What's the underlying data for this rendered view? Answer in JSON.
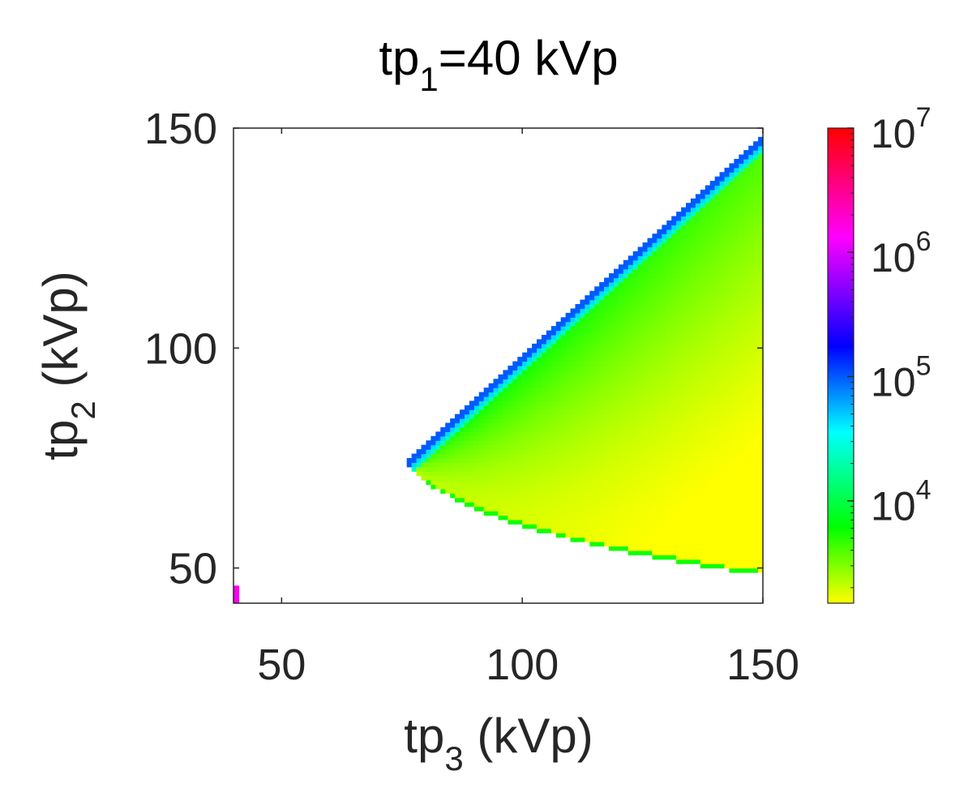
{
  "chart_data": {
    "type": "heatmap",
    "title": {
      "base": "tp",
      "sub": "1",
      "rest": "=40 kVp"
    },
    "xlabel": {
      "base": "tp",
      "sub": "3",
      "rest": " (kVp)"
    },
    "ylabel": {
      "base": "tp",
      "sub": "2",
      "rest": " (kVp)"
    },
    "xlim": [
      40,
      150
    ],
    "ylim": [
      42,
      150
    ],
    "xticks": [
      50,
      100,
      150
    ],
    "xtick_labels": [
      "50",
      "100",
      "150"
    ],
    "yticks": [
      50,
      100,
      150
    ],
    "ytick_labels": [
      "50",
      "100",
      "150"
    ],
    "grid": false,
    "colorscale": "log",
    "clim": [
      1500,
      10000000
    ],
    "colorbar": {
      "ticks": [
        10000,
        100000,
        1000000,
        10000000
      ],
      "tick_labels": [
        {
          "base": "10",
          "exp": "4"
        },
        {
          "base": "10",
          "exp": "5"
        },
        {
          "base": "10",
          "exp": "6"
        },
        {
          "base": "10",
          "exp": "7"
        }
      ],
      "colors": [
        "#ffff00",
        "#00ff00",
        "#00ffff",
        "#0000ff",
        "#ff00ff",
        "#ff0000"
      ]
    },
    "region": {
      "description_values": "nonzero cells exist where tp3 >= ~76 kVp, bounded above by tp2 = tp3 and below by a curve",
      "apex": [
        76,
        74
      ],
      "lower_boundary": [
        [
          76,
          74
        ],
        [
          80,
          69
        ],
        [
          90,
          63.5
        ],
        [
          100,
          59.5
        ],
        [
          110,
          56.5
        ],
        [
          120,
          54
        ],
        [
          130,
          52
        ],
        [
          140,
          50
        ],
        [
          150,
          48.5
        ]
      ],
      "upper_boundary": [
        [
          76,
          74
        ],
        [
          150,
          148
        ]
      ],
      "isolated_cell": {
        "x": 41,
        "y": 44,
        "value": 1500000
      }
    }
  }
}
